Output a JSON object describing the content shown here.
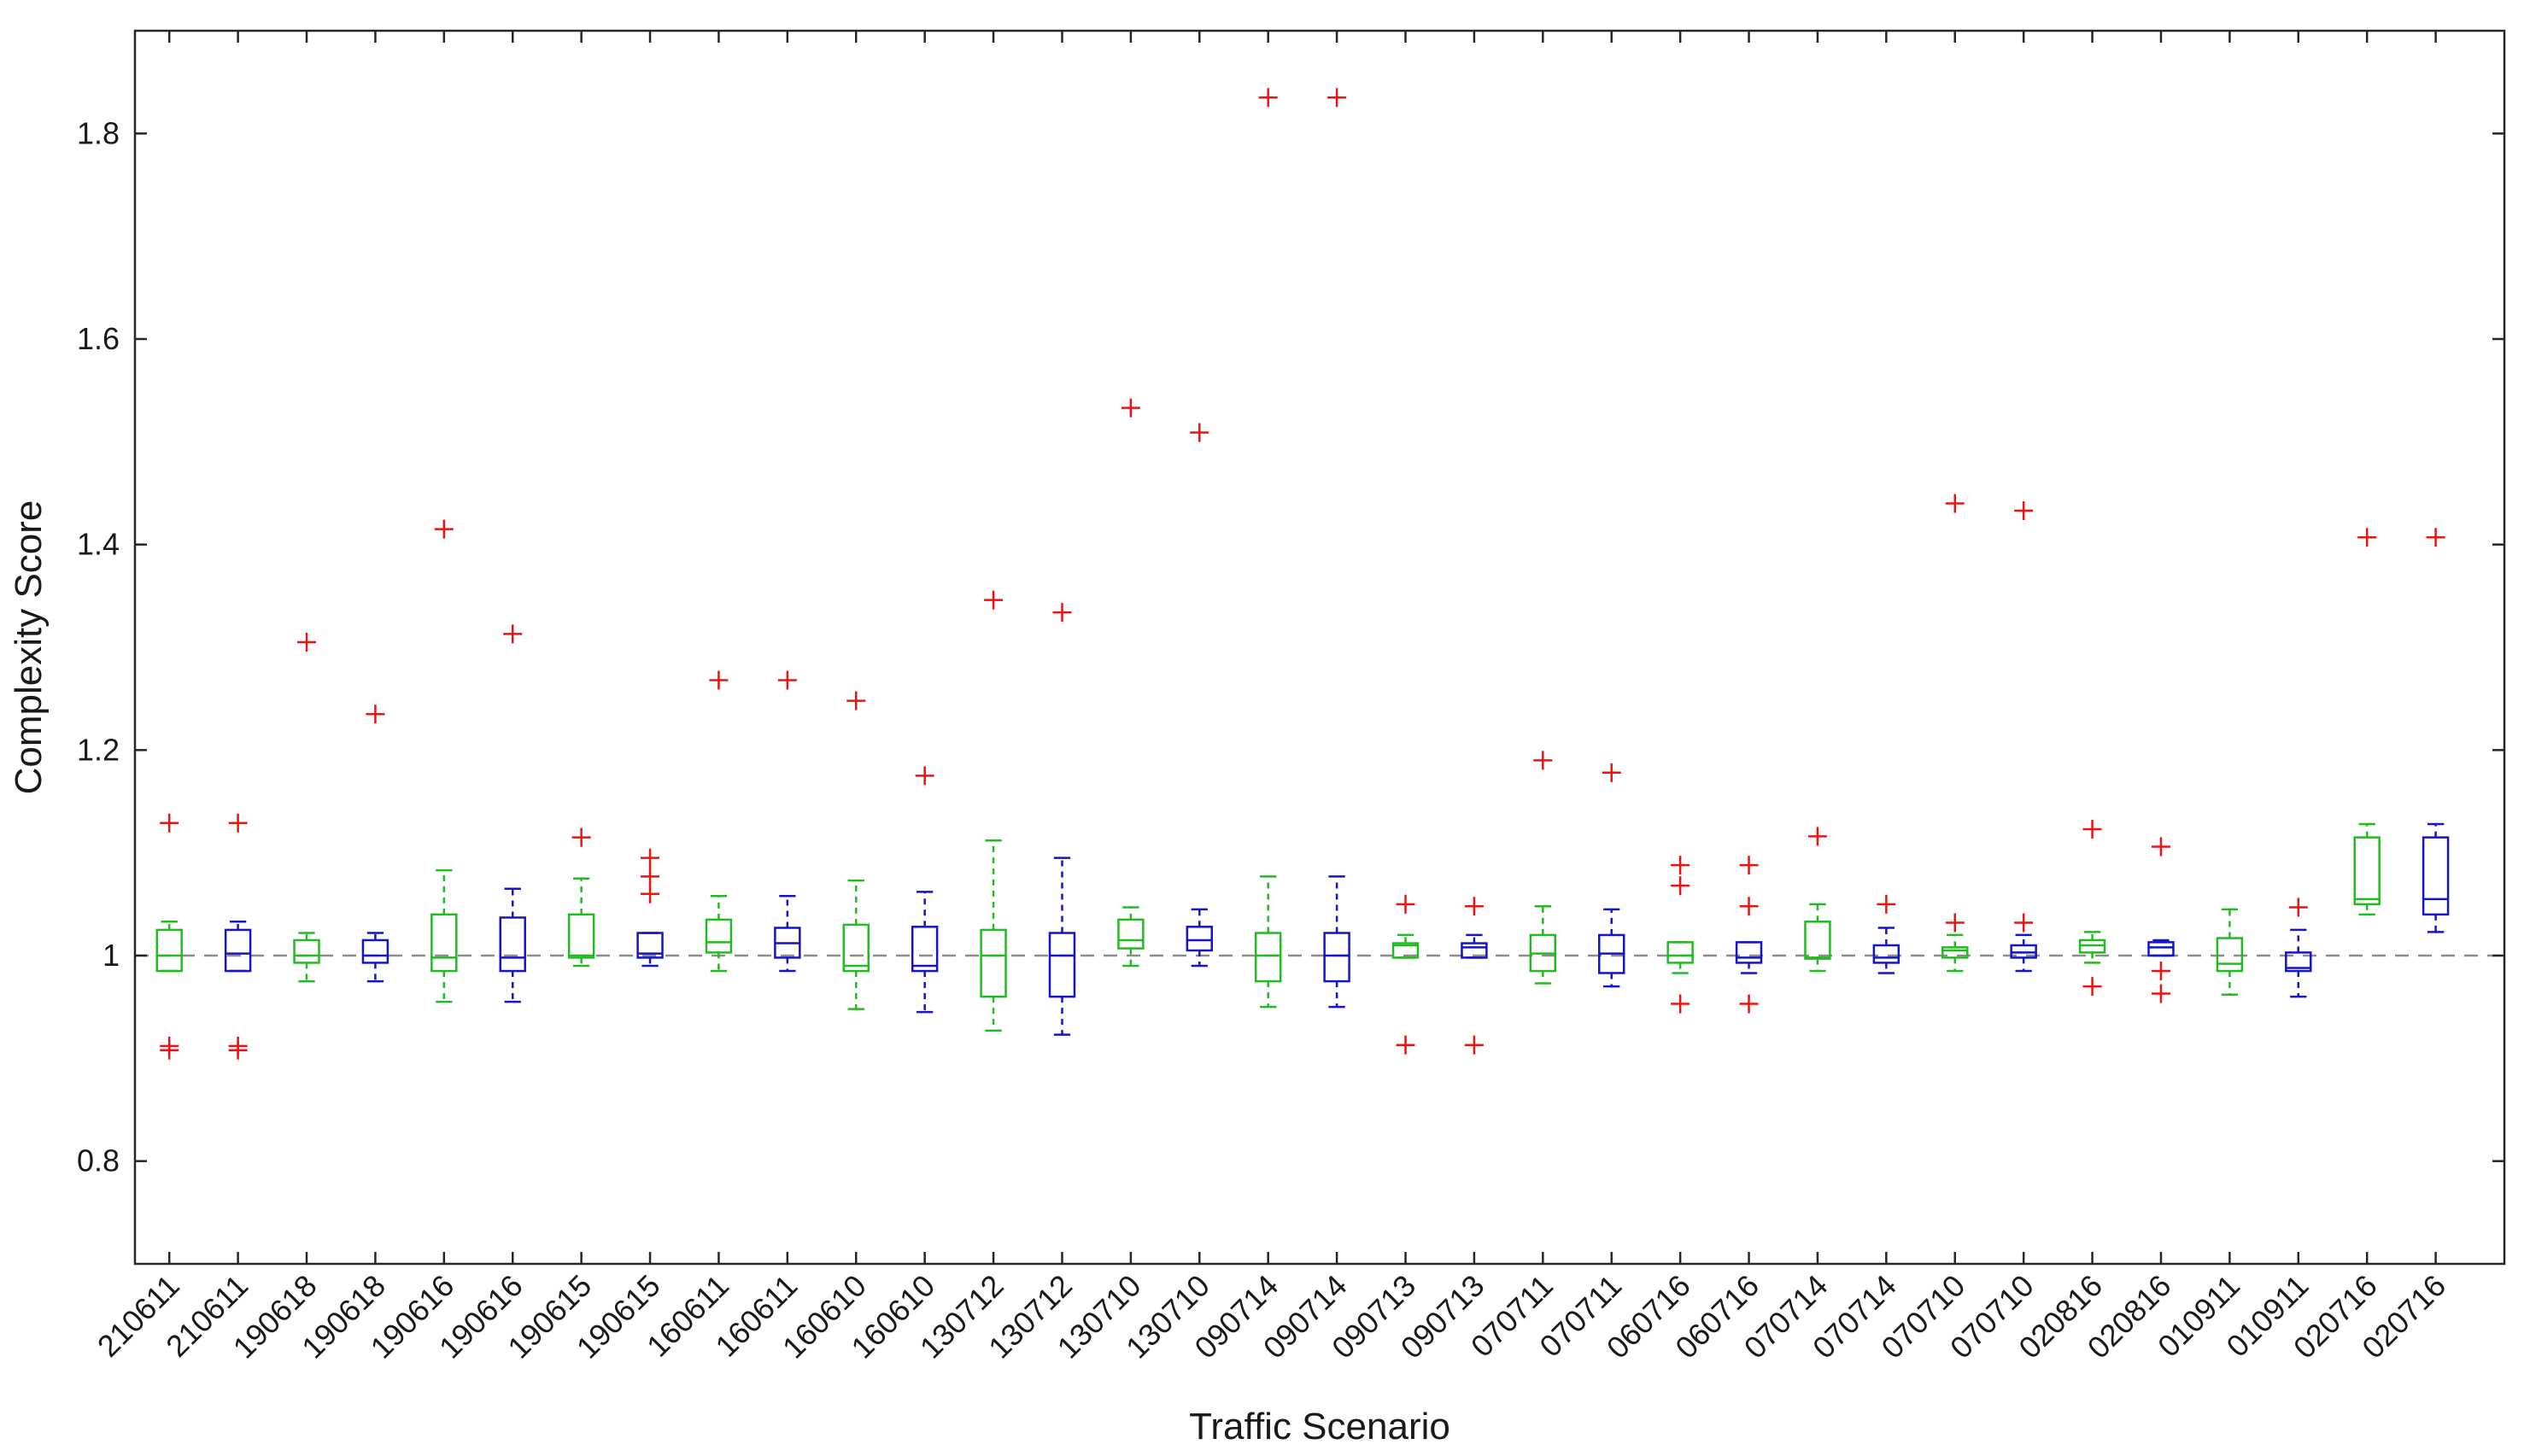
{
  "chart_data": {
    "type": "box",
    "xlabel": "Traffic Scenario",
    "ylabel": "Complexity Score",
    "ylim": [
      0.7,
      1.9
    ],
    "yticks": [
      0.8,
      1,
      1.2,
      1.4,
      1.6,
      1.8
    ],
    "ytick_labels": [
      "0.8",
      "1",
      "1.2",
      "1.4",
      "1.6",
      "1.8"
    ],
    "reference_line": {
      "y": 1,
      "style": "dashed",
      "color": "#8c8c8c"
    },
    "grid": false,
    "colors": {
      "green": "#22bb22",
      "blue": "#1515c8",
      "outlier": "#ee1111",
      "axis": "#262626"
    },
    "categories": [
      "210611",
      "210611",
      "190618",
      "190618",
      "190616",
      "190616",
      "190615",
      "190615",
      "160611",
      "160611",
      "160610",
      "160610",
      "130712",
      "130712",
      "130710",
      "130710",
      "090714",
      "090714",
      "090713",
      "090713",
      "070711",
      "070711",
      "060716",
      "060716",
      "070714",
      "070714",
      "070710",
      "070710",
      "020816",
      "020816",
      "010911",
      "010911",
      "020716",
      "020716"
    ],
    "boxes": [
      {
        "color": "green",
        "whisker_low": 0.985,
        "q1": 0.985,
        "median": 1.0,
        "q3": 1.025,
        "whisker_high": 1.033,
        "outliers": [
          1.129,
          0.912,
          0.908
        ]
      },
      {
        "color": "blue",
        "whisker_low": 0.985,
        "q1": 0.985,
        "median": 1.002,
        "q3": 1.025,
        "whisker_high": 1.033,
        "outliers": [
          1.129,
          0.912,
          0.908
        ]
      },
      {
        "color": "green",
        "whisker_low": 0.975,
        "q1": 0.993,
        "median": 1.0,
        "q3": 1.015,
        "whisker_high": 1.022,
        "outliers": [
          1.305
        ]
      },
      {
        "color": "blue",
        "whisker_low": 0.975,
        "q1": 0.993,
        "median": 1.0,
        "q3": 1.015,
        "whisker_high": 1.022,
        "outliers": [
          1.235
        ]
      },
      {
        "color": "green",
        "whisker_low": 0.955,
        "q1": 0.985,
        "median": 0.998,
        "q3": 1.04,
        "whisker_high": 1.083,
        "outliers": [
          1.415
        ]
      },
      {
        "color": "blue",
        "whisker_low": 0.955,
        "q1": 0.985,
        "median": 0.998,
        "q3": 1.037,
        "whisker_high": 1.065,
        "outliers": [
          1.313
        ]
      },
      {
        "color": "green",
        "whisker_low": 0.99,
        "q1": 0.998,
        "median": 1.0,
        "q3": 1.04,
        "whisker_high": 1.075,
        "outliers": [
          1.115
        ]
      },
      {
        "color": "blue",
        "whisker_low": 0.99,
        "q1": 0.998,
        "median": 1.002,
        "q3": 1.022,
        "whisker_high": 1.022,
        "outliers": [
          1.095,
          1.077,
          1.06
        ]
      },
      {
        "color": "green",
        "whisker_low": 0.985,
        "q1": 1.003,
        "median": 1.013,
        "q3": 1.035,
        "whisker_high": 1.058,
        "outliers": [
          1.268
        ]
      },
      {
        "color": "blue",
        "whisker_low": 0.985,
        "q1": 0.998,
        "median": 1.012,
        "q3": 1.027,
        "whisker_high": 1.058,
        "outliers": [
          1.268
        ]
      },
      {
        "color": "green",
        "whisker_low": 0.948,
        "q1": 0.985,
        "median": 0.99,
        "q3": 1.03,
        "whisker_high": 1.073,
        "outliers": [
          1.248
        ]
      },
      {
        "color": "blue",
        "whisker_low": 0.945,
        "q1": 0.985,
        "median": 0.99,
        "q3": 1.028,
        "whisker_high": 1.062,
        "outliers": [
          1.175
        ]
      },
      {
        "color": "green",
        "whisker_low": 0.927,
        "q1": 0.96,
        "median": 1.0,
        "q3": 1.025,
        "whisker_high": 1.112,
        "outliers": [
          1.346
        ]
      },
      {
        "color": "blue",
        "whisker_low": 0.923,
        "q1": 0.96,
        "median": 1.0,
        "q3": 1.022,
        "whisker_high": 1.095,
        "outliers": [
          1.334
        ]
      },
      {
        "color": "green",
        "whisker_low": 0.99,
        "q1": 1.007,
        "median": 1.015,
        "q3": 1.035,
        "whisker_high": 1.047,
        "outliers": [
          1.533
        ]
      },
      {
        "color": "blue",
        "whisker_low": 0.99,
        "q1": 1.005,
        "median": 1.015,
        "q3": 1.028,
        "whisker_high": 1.045,
        "outliers": [
          1.509
        ]
      },
      {
        "color": "green",
        "whisker_low": 0.95,
        "q1": 0.975,
        "median": 1.0,
        "q3": 1.022,
        "whisker_high": 1.077,
        "outliers": [
          1.835
        ]
      },
      {
        "color": "blue",
        "whisker_low": 0.95,
        "q1": 0.975,
        "median": 1.0,
        "q3": 1.022,
        "whisker_high": 1.077,
        "outliers": [
          1.835
        ]
      },
      {
        "color": "green",
        "whisker_low": 0.998,
        "q1": 0.998,
        "median": 1.01,
        "q3": 1.012,
        "whisker_high": 1.02,
        "outliers": [
          1.05,
          0.913
        ]
      },
      {
        "color": "blue",
        "whisker_low": 0.998,
        "q1": 0.998,
        "median": 1.008,
        "q3": 1.012,
        "whisker_high": 1.02,
        "outliers": [
          1.048,
          0.913
        ]
      },
      {
        "color": "green",
        "whisker_low": 0.973,
        "q1": 0.985,
        "median": 1.002,
        "q3": 1.02,
        "whisker_high": 1.048,
        "outliers": [
          1.19
        ]
      },
      {
        "color": "blue",
        "whisker_low": 0.97,
        "q1": 0.983,
        "median": 1.002,
        "q3": 1.02,
        "whisker_high": 1.045,
        "outliers": [
          1.178
        ]
      },
      {
        "color": "green",
        "whisker_low": 0.983,
        "q1": 0.993,
        "median": 1.0,
        "q3": 1.013,
        "whisker_high": 1.013,
        "outliers": [
          1.088,
          1.068,
          0.953
        ]
      },
      {
        "color": "blue",
        "whisker_low": 0.983,
        "q1": 0.993,
        "median": 0.998,
        "q3": 1.013,
        "whisker_high": 1.013,
        "outliers": [
          1.088,
          1.048,
          0.953
        ]
      },
      {
        "color": "green",
        "whisker_low": 0.985,
        "q1": 0.997,
        "median": 0.998,
        "q3": 1.033,
        "whisker_high": 1.05,
        "outliers": [
          1.116
        ]
      },
      {
        "color": "blue",
        "whisker_low": 0.983,
        "q1": 0.993,
        "median": 0.998,
        "q3": 1.01,
        "whisker_high": 1.027,
        "outliers": [
          1.05
        ]
      },
      {
        "color": "green",
        "whisker_low": 0.985,
        "q1": 0.998,
        "median": 1.005,
        "q3": 1.008,
        "whisker_high": 1.02,
        "outliers": [
          1.44,
          1.032
        ]
      },
      {
        "color": "blue",
        "whisker_low": 0.985,
        "q1": 0.998,
        "median": 1.003,
        "q3": 1.01,
        "whisker_high": 1.02,
        "outliers": [
          1.433,
          1.032
        ]
      },
      {
        "color": "green",
        "whisker_low": 0.993,
        "q1": 1.003,
        "median": 1.01,
        "q3": 1.015,
        "whisker_high": 1.023,
        "outliers": [
          1.123,
          0.97
        ]
      },
      {
        "color": "blue",
        "whisker_low": 1.0,
        "q1": 1.0,
        "median": 1.008,
        "q3": 1.013,
        "whisker_high": 1.015,
        "outliers": [
          1.106,
          0.985,
          0.963
        ]
      },
      {
        "color": "green",
        "whisker_low": 0.962,
        "q1": 0.985,
        "median": 0.992,
        "q3": 1.017,
        "whisker_high": 1.045,
        "outliers": []
      },
      {
        "color": "blue",
        "whisker_low": 0.96,
        "q1": 0.985,
        "median": 0.988,
        "q3": 1.003,
        "whisker_high": 1.025,
        "outliers": [
          1.047
        ]
      },
      {
        "color": "green",
        "whisker_low": 1.04,
        "q1": 1.05,
        "median": 1.055,
        "q3": 1.115,
        "whisker_high": 1.128,
        "outliers": [
          1.407
        ]
      },
      {
        "color": "blue",
        "whisker_low": 1.023,
        "q1": 1.04,
        "median": 1.055,
        "q3": 1.115,
        "whisker_high": 1.128,
        "outliers": [
          1.407
        ]
      }
    ]
  }
}
